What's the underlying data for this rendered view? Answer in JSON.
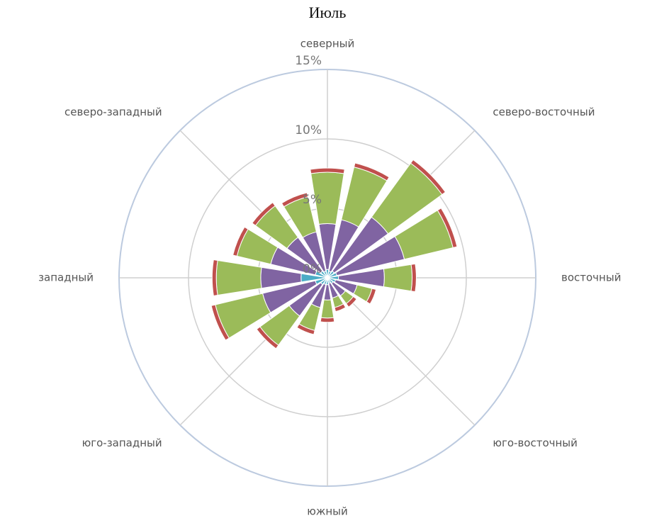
{
  "chart_data": {
    "type": "windrose",
    "title": "Июль",
    "categories": [
      "северный",
      null,
      "северо-восточный",
      null,
      "восточный",
      null,
      "юго-восточный",
      null,
      "южный",
      null,
      "юго-западный",
      null,
      "западный",
      null,
      "северо-западный",
      null
    ],
    "series": [
      {
        "color": "#4bacc6",
        "values": [
          0.6,
          0.5,
          0.6,
          0.7,
          0.8,
          0.6,
          0.5,
          0.4,
          0.5,
          0.5,
          0.6,
          0.9,
          1.9,
          0.9,
          0.6,
          0.5
        ]
      },
      {
        "color": "#8064a2",
        "values": [
          3.3,
          3.8,
          4.8,
          5.0,
          3.3,
          1.6,
          1.1,
          1.1,
          1.1,
          1.7,
          2.8,
          3.9,
          2.9,
          3.3,
          3.0,
          2.9
        ]
      },
      {
        "color": "#9bbb59",
        "values": [
          3.7,
          3.9,
          4.8,
          3.6,
          2.0,
          1.1,
          0.7,
          0.7,
          1.3,
          1.7,
          2.6,
          3.5,
          3.2,
          2.5,
          2.8,
          2.6
        ]
      },
      {
        "color": "#c0504d",
        "values": [
          0.3,
          0.3,
          0.3,
          0.3,
          0.3,
          0.3,
          0.3,
          0.3,
          0.3,
          0.3,
          0.3,
          0.3,
          0.3,
          0.3,
          0.3,
          0.3
        ]
      }
    ],
    "ylim": [
      0,
      15
    ],
    "yticks": [
      {
        "value": 0,
        "label": "0%"
      },
      {
        "value": 5,
        "label": "5%"
      },
      {
        "value": 10,
        "label": "10%"
      },
      {
        "value": 15,
        "label": "15%"
      }
    ],
    "grid": true
  }
}
